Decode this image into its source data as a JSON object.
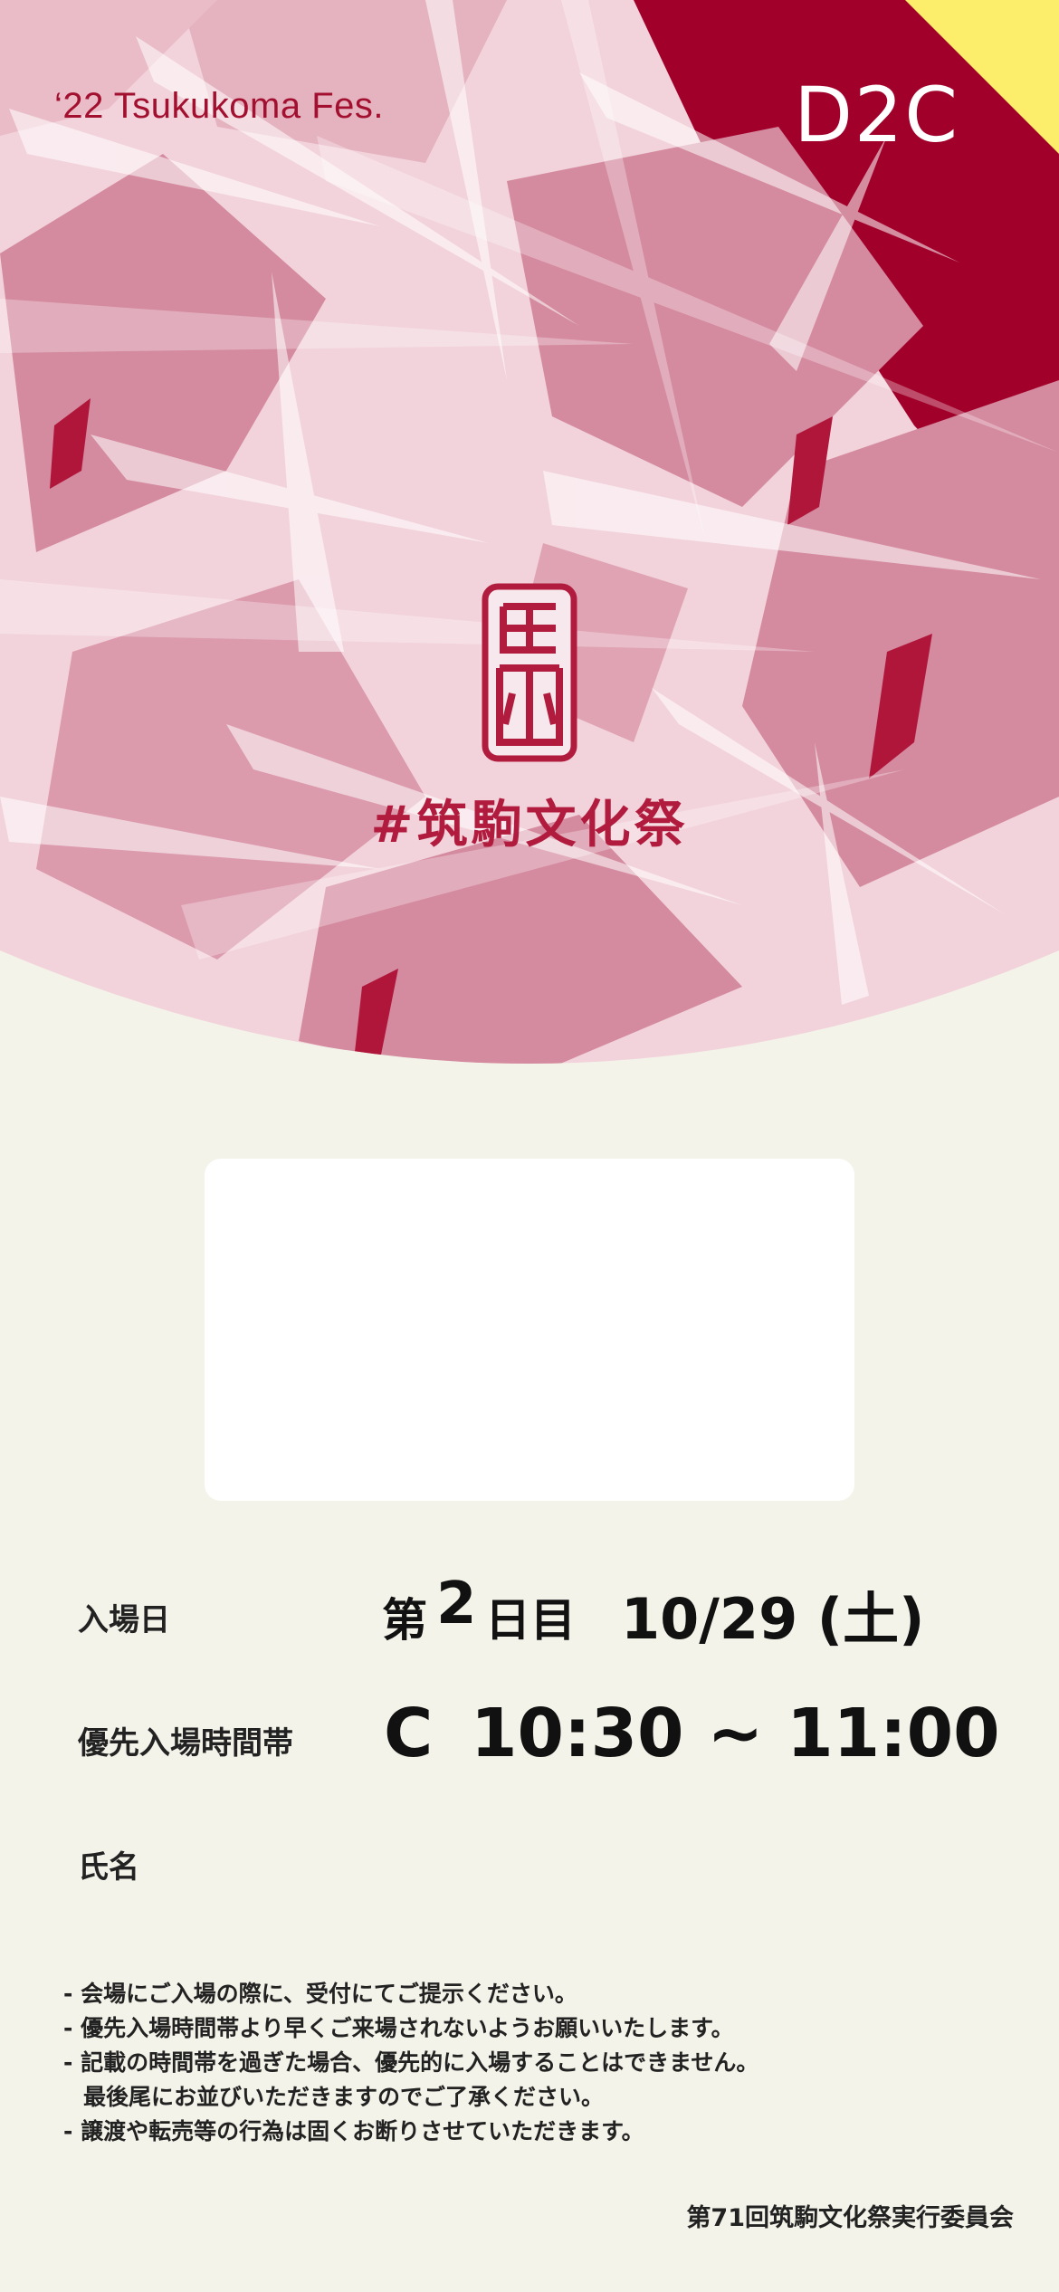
{
  "header": {
    "festival_name": "‘22 Tsukukoma Fes.",
    "ticket_code": "D2C"
  },
  "hero": {
    "hashtag": "#筑駒文化祭"
  },
  "ticket": {
    "entry_day_label": "入場日",
    "entry_day_prefix": "第",
    "entry_day_number": "2",
    "entry_day_suffix": "日目",
    "entry_date": "10/29 (土)",
    "priority_slot_label": "優先入場時間帯",
    "priority_slot_letter": "C",
    "priority_slot_time": "10:30 ~ 11:00",
    "name_label": "氏名",
    "name_value": ""
  },
  "notes": [
    "- 会場にご入場の際に、受付にてご提示ください。",
    "- 優先入場時間帯より早くご来場されないようお願いいたします。",
    "- 記載の時間帯を過ぎた場合、優先的に入場することはできません。",
    "最後尾にお並びいただきますのでご了承ください。",
    "- 譲渡や転売等の行為は固くお断りさせていただきます。"
  ],
  "footer": {
    "committee": "第71回筑駒文化祭実行委員会"
  },
  "colors": {
    "brand_red": "#a3102f",
    "hero_pink": "#d99aab",
    "hero_light": "#f4dbe1",
    "corner_yellow": "#fcee6b",
    "background": "#f4f3e9"
  }
}
